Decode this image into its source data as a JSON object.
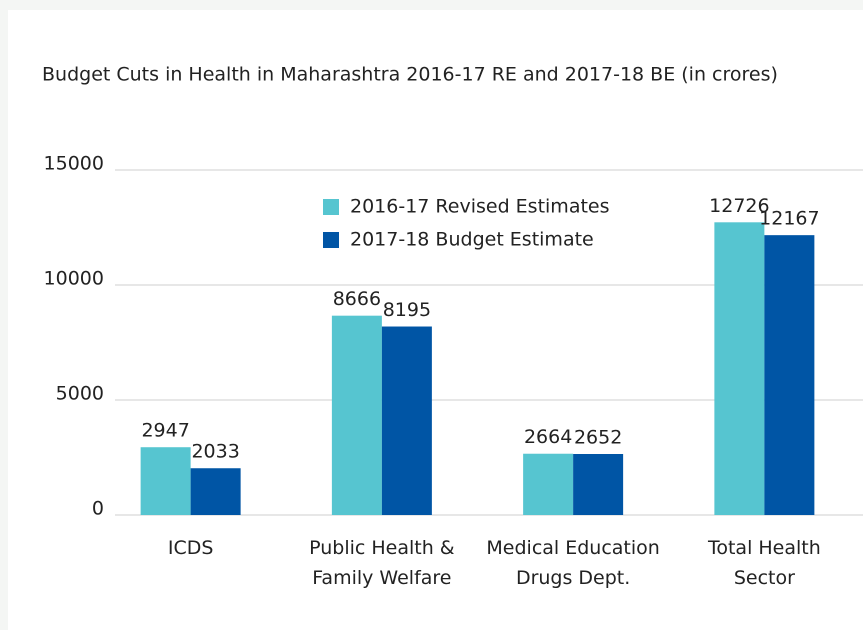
{
  "chart_data": {
    "type": "bar",
    "title": "Budget Cuts in Health in Maharashtra 2016-17 RE and 2017-18 BE (in crores)",
    "categories": [
      "ICDS",
      "Public Health & Family Welfare",
      "Medical Education Drugs Dept.",
      "Total Health Sector"
    ],
    "series": [
      {
        "name": "2016-17 Revised Estimates",
        "color": "#56c5d0",
        "values": [
          2947,
          8666,
          2664,
          12726
        ]
      },
      {
        "name": "2017-18 Budget Estimate",
        "color": "#0055a5",
        "values": [
          2033,
          8195,
          2652,
          12167
        ]
      }
    ],
    "ylim": [
      0,
      15000
    ],
    "yticks": [
      0,
      5000,
      10000,
      15000
    ],
    "grid": true,
    "legend": "top"
  }
}
